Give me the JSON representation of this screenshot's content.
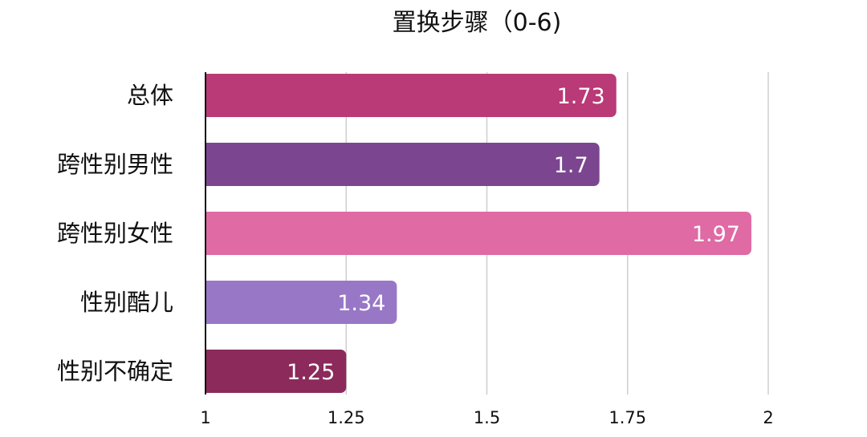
{
  "chart_data": {
    "type": "bar",
    "orientation": "horizontal",
    "title": "置换步骤（0-6)",
    "categories": [
      "总体",
      "跨性别男性",
      "跨性别女性",
      "性别酷儿",
      "性别不确定"
    ],
    "values": [
      1.73,
      1.7,
      1.97,
      1.34,
      1.25
    ],
    "value_labels": [
      "1.73",
      "1.7",
      "1.97",
      "1.34",
      "1.25"
    ],
    "bar_colors": [
      "#b93a76",
      "#7b468f",
      "#df6aa4",
      "#9877c6",
      "#8c2a5b"
    ],
    "xlim": [
      1,
      2
    ],
    "xticks": [
      1,
      1.25,
      1.5,
      1.75,
      2
    ],
    "xtick_labels": [
      "1",
      "1.25",
      "1.5",
      "1.75",
      "2"
    ],
    "xlabel": "",
    "ylabel": "",
    "grid": true,
    "legend": "none"
  }
}
